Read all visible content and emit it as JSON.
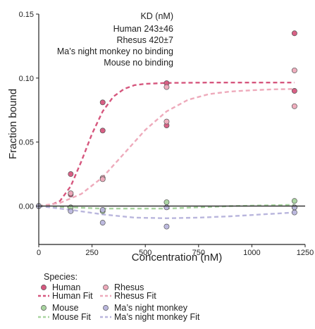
{
  "chart_data": {
    "type": "scatter",
    "xlabel": "Concentration (nM)",
    "ylabel": "Fraction bound",
    "xlim": [
      0,
      1250
    ],
    "ylim": [
      -0.03,
      0.15
    ],
    "x_ticks": [
      0,
      250,
      500,
      750,
      1000,
      1250
    ],
    "x_tick_labels": [
      "0",
      "250",
      "500",
      "750",
      "1000",
      "1250"
    ],
    "y_ticks": [
      0.0,
      0.05,
      0.1,
      0.15
    ],
    "y_tick_labels": [
      "0.00",
      "0.05",
      "0.10",
      "0.15"
    ],
    "reference_line_y": 0,
    "grid": false,
    "annotation": {
      "header": "KD (nM)",
      "rows": [
        {
          "species": "Human",
          "value": "243±46"
        },
        {
          "species": "Rhesus",
          "value": "420±7"
        },
        {
          "species": "Ma’s night monkey",
          "value": "no binding"
        },
        {
          "species": "Mouse",
          "value": "no binding"
        }
      ]
    },
    "legend": {
      "title": "Species:",
      "placement": "bottom",
      "entries": [
        {
          "label": "Human",
          "kind": "point",
          "series": "Human"
        },
        {
          "label": "Rhesus",
          "kind": "point",
          "series": "Rhesus"
        },
        {
          "label": "Human Fit",
          "kind": "line",
          "series": "Human"
        },
        {
          "label": "Rhesus Fit",
          "kind": "line",
          "series": "Rhesus"
        },
        {
          "label": "Mouse",
          "kind": "point",
          "series": "Mouse"
        },
        {
          "label": "Ma’s night monkey",
          "kind": "point",
          "series": "Ma’s night monkey"
        },
        {
          "label": "Mouse Fit",
          "kind": "line",
          "series": "Mouse"
        },
        {
          "label": "Ma’s night monkey Fit",
          "kind": "line",
          "series": "Ma’s night monkey"
        }
      ]
    },
    "series": [
      {
        "name": "Human",
        "color": "#d6577e",
        "points": [
          [
            0,
            0.0
          ],
          [
            150,
            0.025
          ],
          [
            150,
            0.009
          ],
          [
            300,
            0.081
          ],
          [
            300,
            0.059
          ],
          [
            600,
            0.096
          ],
          [
            600,
            0.063
          ],
          [
            1200,
            0.135
          ],
          [
            1200,
            0.09
          ]
        ],
        "fit": [
          [
            0,
            0.0
          ],
          [
            50,
            0.0004
          ],
          [
            100,
            0.004
          ],
          [
            150,
            0.0155
          ],
          [
            200,
            0.035
          ],
          [
            250,
            0.0565
          ],
          [
            300,
            0.074
          ],
          [
            350,
            0.0855
          ],
          [
            400,
            0.0915
          ],
          [
            450,
            0.0945
          ],
          [
            500,
            0.0955
          ],
          [
            600,
            0.0962
          ],
          [
            800,
            0.0965
          ],
          [
            1000,
            0.0965
          ],
          [
            1200,
            0.0965
          ]
        ]
      },
      {
        "name": "Rhesus",
        "color": "#eeaabb",
        "points": [
          [
            0,
            0.0
          ],
          [
            150,
            0.01
          ],
          [
            300,
            0.022
          ],
          [
            300,
            0.021
          ],
          [
            600,
            0.093
          ],
          [
            600,
            0.066
          ],
          [
            1200,
            0.106
          ],
          [
            1200,
            0.078
          ]
        ],
        "fit": [
          [
            0,
            0.0
          ],
          [
            100,
            0.0025
          ],
          [
            200,
            0.0095
          ],
          [
            300,
            0.0225
          ],
          [
            400,
            0.041
          ],
          [
            500,
            0.0595
          ],
          [
            600,
            0.074
          ],
          [
            700,
            0.083
          ],
          [
            800,
            0.0875
          ],
          [
            900,
            0.0895
          ],
          [
            1000,
            0.0905
          ],
          [
            1100,
            0.0912
          ],
          [
            1200,
            0.0915
          ]
        ]
      },
      {
        "name": "Mouse",
        "color": "#a8d49f",
        "points": [
          [
            0,
            0.0
          ],
          [
            150,
            -0.001
          ],
          [
            300,
            -0.004
          ],
          [
            600,
            0.003
          ],
          [
            1200,
            0.004
          ],
          [
            1200,
            -0.001
          ]
        ],
        "fit": [
          [
            0,
            0.0
          ],
          [
            300,
            -0.002
          ],
          [
            600,
            -0.002
          ],
          [
            900,
            0.0
          ],
          [
            1200,
            0.001
          ]
        ]
      },
      {
        "name": "Ma’s night monkey",
        "color": "#b9b6dd",
        "points": [
          [
            0,
            0.0
          ],
          [
            150,
            -0.004
          ],
          [
            300,
            -0.003
          ],
          [
            300,
            -0.013
          ],
          [
            600,
            -0.016
          ],
          [
            600,
            -0.001
          ],
          [
            1200,
            -0.005
          ],
          [
            1200,
            -0.001
          ]
        ],
        "fit": [
          [
            0,
            0.0
          ],
          [
            150,
            -0.003
          ],
          [
            300,
            -0.0065
          ],
          [
            450,
            -0.009
          ],
          [
            600,
            -0.0095
          ],
          [
            750,
            -0.009
          ],
          [
            900,
            -0.008
          ],
          [
            1050,
            -0.0065
          ],
          [
            1200,
            -0.005
          ]
        ]
      }
    ]
  }
}
